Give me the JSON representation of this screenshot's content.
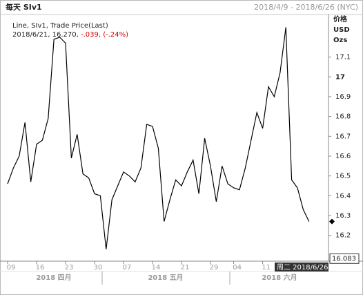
{
  "header": {
    "title": "每天 SIv1",
    "date_range": "2018/4/9 - 2018/6/26 (NYC)"
  },
  "chart_data": {
    "type": "line",
    "legend": "Line, SIv1, Trade Price(Last)",
    "last_point_label": "2018/6/21, 16.270,",
    "change_label": "-.039, (-.24%)",
    "y_axis_title_lines": [
      "价格",
      "USD",
      "Ozs"
    ],
    "categories": [
      "09",
      null,
      null,
      null,
      null,
      "16",
      null,
      null,
      null,
      null,
      "23",
      null,
      null,
      null,
      null,
      "30",
      null,
      null,
      null,
      null,
      "07",
      null,
      null,
      null,
      null,
      "14",
      null,
      null,
      null,
      null,
      "21",
      null,
      null,
      null,
      null,
      "29",
      null,
      null,
      null,
      "04",
      null,
      null,
      null,
      null,
      "11",
      null,
      null,
      null,
      null,
      null,
      null,
      null,
      null
    ],
    "month_labels": [
      "2018 四月",
      "2018 五月",
      "2018 六月"
    ],
    "series": [
      {
        "name": "SIv1",
        "color": "#000000",
        "values": [
          16.46,
          16.54,
          16.6,
          16.77,
          16.47,
          16.66,
          16.68,
          16.79,
          17.19,
          17.2,
          17.17,
          16.59,
          16.71,
          16.51,
          16.49,
          16.41,
          16.4,
          16.13,
          16.38,
          16.45,
          16.52,
          16.5,
          16.47,
          16.54,
          16.76,
          16.75,
          16.64,
          16.27,
          16.38,
          16.48,
          16.45,
          16.52,
          16.58,
          16.41,
          16.69,
          16.55,
          16.37,
          16.55,
          16.46,
          16.44,
          16.43,
          16.54,
          16.68,
          16.82,
          16.74,
          16.95,
          16.9,
          17.02,
          17.25,
          16.48,
          16.44,
          16.33,
          16.27
        ]
      }
    ],
    "ylim": [
      16.07,
      17.36
    ],
    "yticks": [
      16.2,
      16.3,
      16.4,
      16.5,
      16.6,
      16.7,
      16.8,
      16.9,
      17,
      17.1
    ],
    "current_price": 16.083,
    "crosshair_label": "周二 2018/6/26"
  }
}
